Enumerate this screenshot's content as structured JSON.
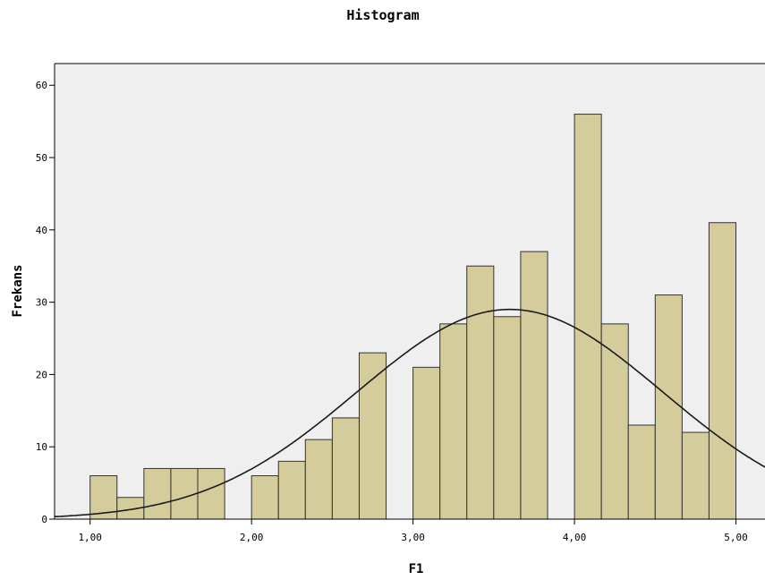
{
  "chart_data": {
    "type": "bar",
    "title": "Histogram",
    "xlabel": "F1",
    "ylabel": "Frekans",
    "xlim": [
      0.78,
      5.18
    ],
    "ylim": [
      0,
      63
    ],
    "x_ticks": [
      1,
      2,
      3,
      4,
      5
    ],
    "x_tick_labels": [
      "1,00",
      "2,00",
      "3,00",
      "4,00",
      "5,00"
    ],
    "y_ticks": [
      0,
      10,
      20,
      30,
      40,
      50,
      60
    ],
    "y_tick_labels": [
      "0",
      "10",
      "20",
      "30",
      "40",
      "50",
      "60"
    ],
    "grid": false,
    "bin_width": 0.1667,
    "bins": [
      {
        "x_start": 1.0,
        "count": 6
      },
      {
        "x_start": 1.1667,
        "count": 3
      },
      {
        "x_start": 1.3333,
        "count": 7
      },
      {
        "x_start": 1.5,
        "count": 7
      },
      {
        "x_start": 1.6667,
        "count": 7
      },
      {
        "x_start": 2.0,
        "count": 6
      },
      {
        "x_start": 2.1667,
        "count": 8
      },
      {
        "x_start": 2.3333,
        "count": 11
      },
      {
        "x_start": 2.5,
        "count": 14
      },
      {
        "x_start": 2.6667,
        "count": 23
      },
      {
        "x_start": 3.0,
        "count": 21
      },
      {
        "x_start": 3.1667,
        "count": 27
      },
      {
        "x_start": 3.3333,
        "count": 35
      },
      {
        "x_start": 3.5,
        "count": 28
      },
      {
        "x_start": 3.6667,
        "count": 37
      },
      {
        "x_start": 4.0,
        "count": 56
      },
      {
        "x_start": 4.1667,
        "count": 27
      },
      {
        "x_start": 4.3333,
        "count": 13
      },
      {
        "x_start": 4.5,
        "count": 31
      },
      {
        "x_start": 4.6667,
        "count": 12
      },
      {
        "x_start": 4.8333,
        "count": 41
      }
    ],
    "normal_curve": {
      "mean": 3.6,
      "peak": 29
    },
    "colors": {
      "bar_fill": "#d4cc9b",
      "bar_stroke": "#333333",
      "plot_bg": "#efefef",
      "curve": "#1a1a1a"
    }
  }
}
